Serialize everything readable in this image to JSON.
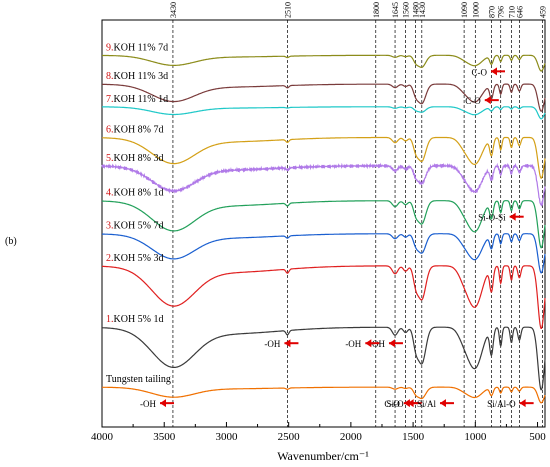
{
  "chart_data": {
    "type": "line",
    "panel_label": "(b)",
    "xlabel": "Wavenumber/cm⁻¹",
    "xlim": [
      4000,
      440
    ],
    "x_ticks": [
      "4000",
      "3500",
      "3000",
      "2500",
      "2000",
      "1500",
      "1000",
      "500"
    ],
    "grid": false,
    "legend": "labels at left of each trace",
    "ref_lines": [
      3430,
      2510,
      1800,
      1645,
      1560,
      1480,
      1430,
      1090,
      1000,
      870,
      796,
      710,
      646,
      459
    ],
    "ref_labels": [
      "3430",
      "2510",
      "1800",
      "1645",
      "1560",
      "1480",
      "1430",
      "1090",
      "1000",
      "870",
      "796",
      "710",
      "646",
      "459"
    ],
    "series": [
      {
        "name": "9.KOH 11% 7d",
        "color": "#8c8c1a",
        "baseline": 0.24,
        "amp": 0.3,
        "noise": 0.0,
        "sharp": 1.7
      },
      {
        "name": "8.KOH 11% 3d",
        "color": "#7a3b3b",
        "baseline": 0.85,
        "amp": 0.52,
        "noise": 0.0,
        "sharp": 1.6
      },
      {
        "name": "7.KOH 11% 1d",
        "color": "#1ec8c8",
        "baseline": 1.33,
        "amp": 0.23,
        "noise": 0.0,
        "sharp": 1.0
      },
      {
        "name": "6.KOH 8% 7d",
        "color": "#d4a017",
        "baseline": 1.98,
        "amp": 0.78,
        "noise": 0.0,
        "sharp": 1.3
      },
      {
        "name": "5.KOH 8% 3d",
        "color": "#b07ae8",
        "baseline": 2.58,
        "amp": 0.75,
        "noise": 0.05,
        "sharp": 1.0
      },
      {
        "name": "4.KOH 8% 1d",
        "color": "#22a05a",
        "baseline": 3.32,
        "amp": 0.9,
        "noise": 0.0,
        "sharp": 1.1
      },
      {
        "name": "3.KOH 5% 7d",
        "color": "#1a5fd0",
        "baseline": 4.02,
        "amp": 0.75,
        "noise": 0.0,
        "sharp": 1.1
      },
      {
        "name": "2.KOH 5% 3d",
        "color": "#e02020",
        "baseline": 4.7,
        "amp": 1.2,
        "noise": 0.0,
        "sharp": 1.2
      },
      {
        "name": "1.KOH 5% 1d",
        "color": "#3a3a3a",
        "baseline": 6.0,
        "amp": 1.2,
        "noise": 0.0,
        "sharp": 1.3
      },
      {
        "name": "Tungsten tailing",
        "color": "#f07000",
        "baseline": 7.27,
        "amp": 0.3,
        "noise": 0.0,
        "sharp": 1.6
      }
    ],
    "annotations": [
      {
        "text": "C-O",
        "x": 890,
        "trace": 0
      },
      {
        "text": "C-O",
        "x": 940,
        "trace": 1
      },
      {
        "text": "Si-O-Si",
        "x": 740,
        "trace": 5
      },
      {
        "text": "-OH",
        "x": 1710,
        "trace": 8
      },
      {
        "text": "-OH",
        "x": 1900,
        "trace": 8
      },
      {
        "text": "-OH",
        "x": 2550,
        "trace": 8
      },
      {
        "text": "C-O",
        "x": 1590,
        "trace": 9
      },
      {
        "text": "Si-O",
        "x": 1560,
        "trace": 9
      },
      {
        "text": "Si/Al",
        "x": 1300,
        "trace": 9
      },
      {
        "text": "Si/Al-O",
        "x": 660,
        "trace": 9
      },
      {
        "text": "-OH",
        "x": 3550,
        "trace": 9
      }
    ]
  }
}
